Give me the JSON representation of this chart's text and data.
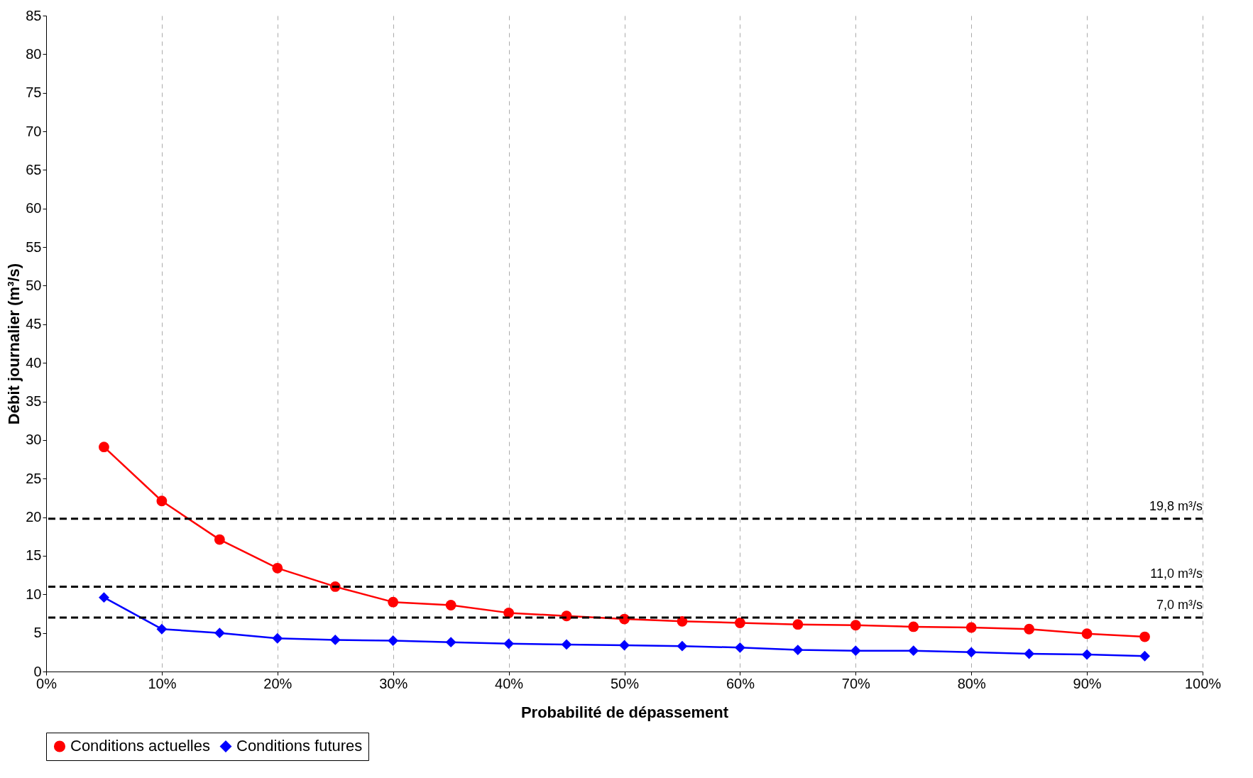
{
  "chart_data": {
    "type": "line",
    "xlabel": "Probabilité de dépassement",
    "ylabel": "Débit journalier (m³/s)",
    "x": [
      5,
      10,
      15,
      20,
      25,
      30,
      35,
      40,
      45,
      50,
      55,
      60,
      65,
      70,
      75,
      80,
      85,
      90,
      95
    ],
    "series": [
      {
        "name": "Conditions actuelles",
        "color": "#ff0000",
        "marker": "circle",
        "values": [
          29.1,
          22.1,
          17.1,
          13.4,
          11.0,
          9.0,
          8.6,
          7.6,
          7.2,
          6.8,
          6.5,
          6.3,
          6.1,
          6.0,
          5.8,
          5.7,
          5.5,
          4.9,
          4.5
        ]
      },
      {
        "name": "Conditions futures",
        "color": "#0000ff",
        "marker": "diamond",
        "values": [
          9.6,
          5.5,
          5.0,
          4.3,
          4.1,
          4.0,
          3.8,
          3.6,
          3.5,
          3.4,
          3.3,
          3.1,
          2.8,
          2.7,
          2.7,
          2.5,
          2.3,
          2.2,
          2.0
        ]
      }
    ],
    "xlim": [
      0,
      100
    ],
    "xticks": [
      {
        "value": 0,
        "label": "0%"
      },
      {
        "value": 10,
        "label": "10%"
      },
      {
        "value": 20,
        "label": "20%"
      },
      {
        "value": 30,
        "label": "30%"
      },
      {
        "value": 40,
        "label": "40%"
      },
      {
        "value": 50,
        "label": "50%"
      },
      {
        "value": 60,
        "label": "60%"
      },
      {
        "value": 70,
        "label": "70%"
      },
      {
        "value": 80,
        "label": "80%"
      },
      {
        "value": 90,
        "label": "90%"
      },
      {
        "value": 100,
        "label": "100%"
      }
    ],
    "ylim": [
      0,
      85
    ],
    "yticks": [
      0,
      5,
      10,
      15,
      20,
      25,
      30,
      35,
      40,
      45,
      50,
      55,
      60,
      65,
      70,
      75,
      80,
      85
    ],
    "ref_lines": [
      {
        "axis": "y",
        "value": 19.8,
        "label": "19,8 m³/s",
        "color": "#000000",
        "line_style": "dashed"
      },
      {
        "axis": "y",
        "value": 11.0,
        "label": "11,0 m³/s",
        "color": "#000000",
        "line_style": "dashed"
      },
      {
        "axis": "y",
        "value": 7.0,
        "label": "7,0 m³/s",
        "color": "#000000",
        "line_style": "dashed"
      }
    ],
    "grid": "x",
    "legend": "bottom",
    "line_style": "solid"
  }
}
